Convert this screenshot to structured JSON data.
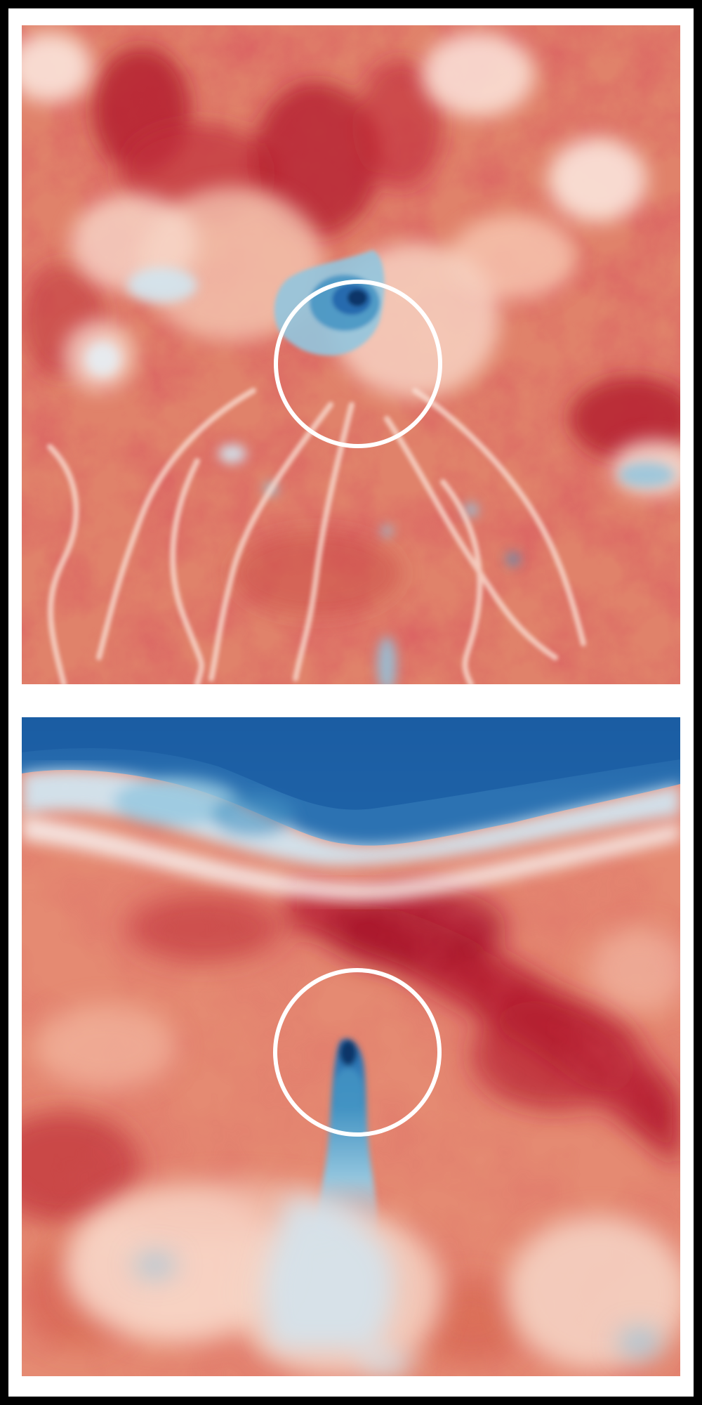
{
  "image": {
    "colormap": [
      "#053061",
      "#2166ac",
      "#4393c3",
      "#92c5de",
      "#d1e5f0",
      "#f7f7f7",
      "#fddbc7",
      "#f4a582",
      "#d6604d",
      "#b2182b",
      "#67001f"
    ],
    "frame_color": "#000000",
    "background_color": "#ffffff",
    "marker_color": "#ffffff",
    "panels": [
      {
        "label": "",
        "description": "",
        "marker": "circle"
      },
      {
        "label": "",
        "description": "",
        "marker": "circle"
      }
    ]
  }
}
